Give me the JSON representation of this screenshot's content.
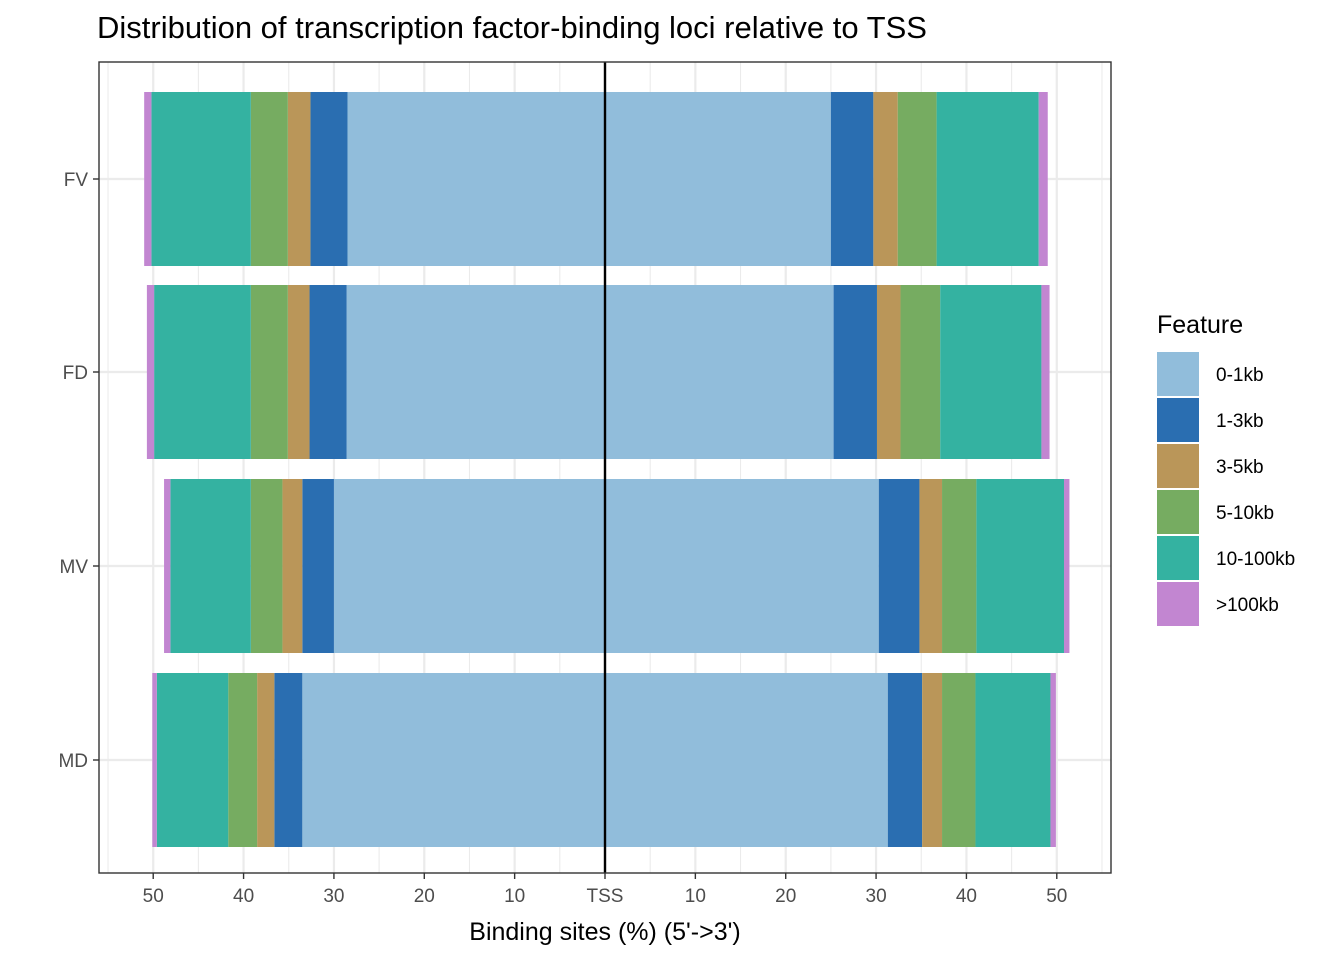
{
  "chart_data": {
    "type": "bar",
    "orientation": "horizontal",
    "stacked": true,
    "diverging": true,
    "title": "Distribution of transcription factor-binding loci relative to TSS",
    "xlabel": "Binding sites (%) (5'->3')",
    "ylabel": "",
    "xlim": [
      -56,
      56
    ],
    "x_ticks": [
      {
        "value": -50,
        "label": "50"
      },
      {
        "value": -40,
        "label": "40"
      },
      {
        "value": -30,
        "label": "30"
      },
      {
        "value": -20,
        "label": "20"
      },
      {
        "value": -10,
        "label": "10"
      },
      {
        "value": 0,
        "label": "TSS"
      },
      {
        "value": 10,
        "label": "10"
      },
      {
        "value": 20,
        "label": "20"
      },
      {
        "value": 30,
        "label": "30"
      },
      {
        "value": 40,
        "label": "40"
      },
      {
        "value": 50,
        "label": "50"
      }
    ],
    "categories": [
      "FV",
      "FD",
      "MV",
      "MD"
    ],
    "legend": {
      "title": "Feature",
      "position": "right"
    },
    "grid": true,
    "series": [
      {
        "name": "0-1kb",
        "color": "#91BDDB",
        "upstream": [
          28.5,
          28.6,
          30.0,
          33.5
        ],
        "downstream": [
          25.0,
          25.3,
          30.3,
          31.3
        ]
      },
      {
        "name": "1-3kb",
        "color": "#2A6EB1",
        "upstream": [
          4.1,
          4.1,
          3.5,
          3.1
        ],
        "downstream": [
          4.7,
          4.8,
          4.5,
          3.8
        ]
      },
      {
        "name": "3-5kb",
        "color": "#BA9659",
        "upstream": [
          2.5,
          2.4,
          2.2,
          1.9
        ],
        "downstream": [
          2.7,
          2.6,
          2.5,
          2.2
        ]
      },
      {
        "name": "5-10kb",
        "color": "#76AC61",
        "upstream": [
          4.1,
          4.1,
          3.5,
          3.2
        ],
        "downstream": [
          4.3,
          4.4,
          3.8,
          3.7
        ]
      },
      {
        "name": "10-100kb",
        "color": "#34B2A1",
        "upstream": [
          11.0,
          10.7,
          8.9,
          7.9
        ],
        "downstream": [
          11.3,
          11.2,
          9.7,
          8.3
        ]
      },
      {
        "name": ">100kb",
        "color": "#C286D1",
        "upstream": [
          0.8,
          0.8,
          0.7,
          0.5
        ],
        "downstream": [
          1.0,
          0.9,
          0.6,
          0.6
        ]
      }
    ]
  }
}
